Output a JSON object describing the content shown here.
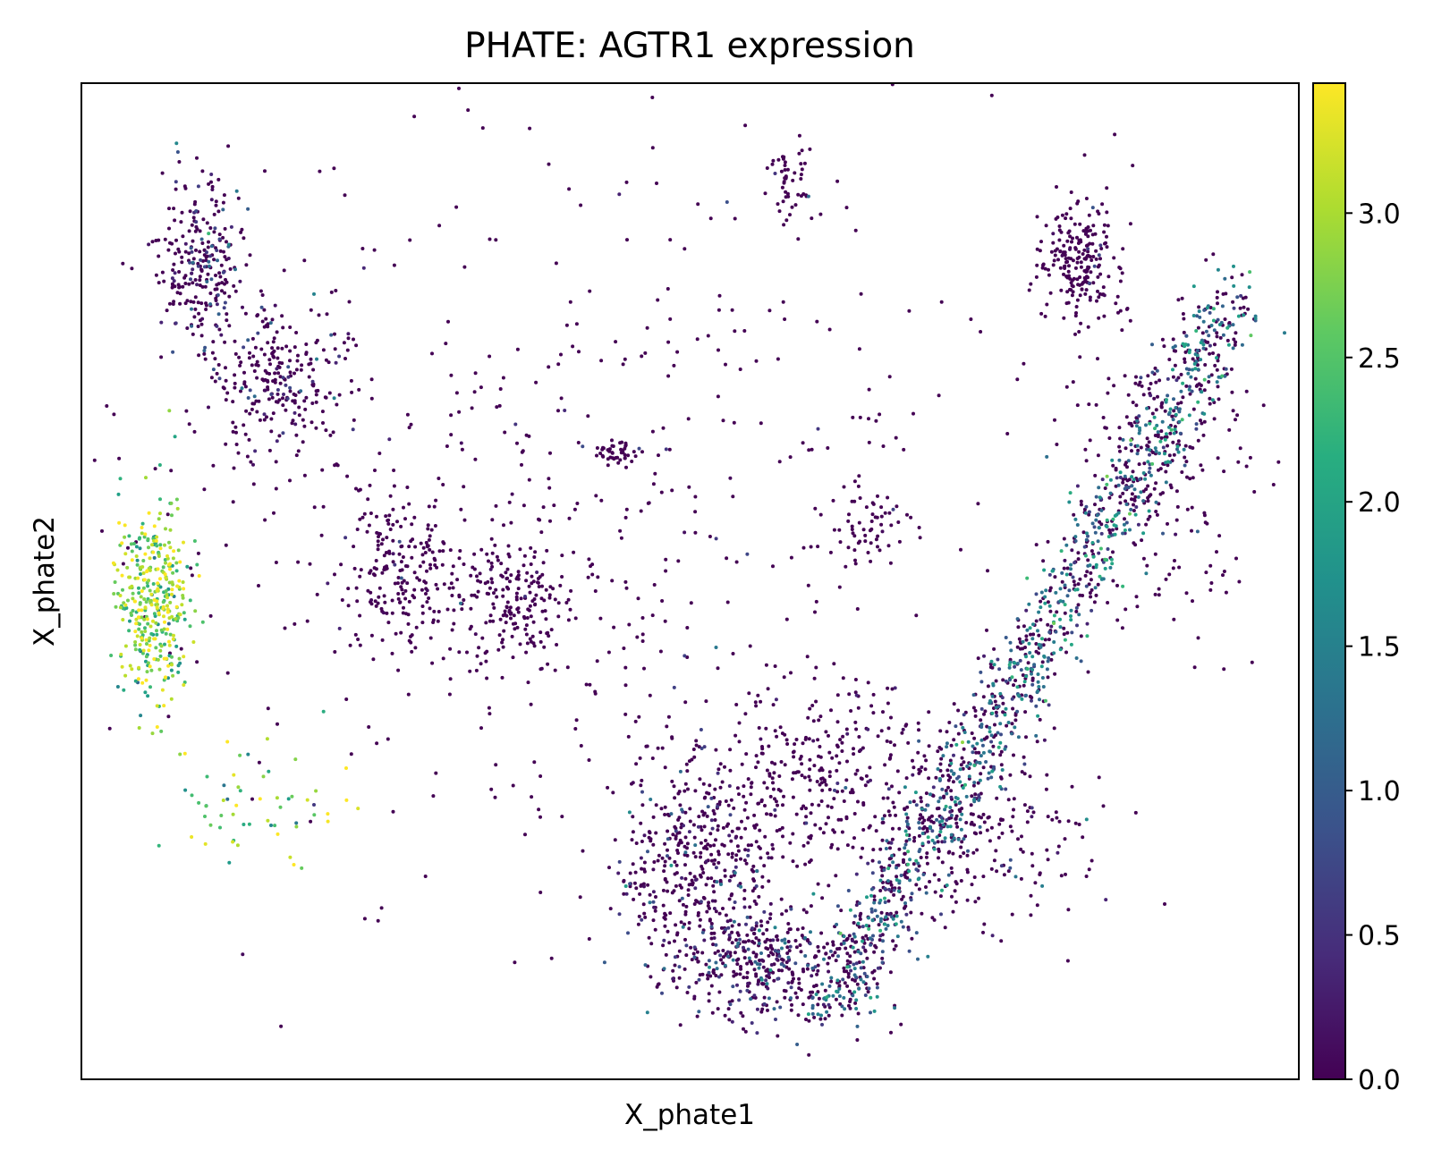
{
  "chart_data": {
    "type": "scatter",
    "title": "PHATE: AGTR1 expression",
    "xlabel": "X_phate1",
    "ylabel": "X_phate2",
    "x_ticks_shown": false,
    "y_ticks_shown": false,
    "grid": false,
    "xlim": [
      0,
      100
    ],
    "ylim": [
      0,
      100
    ],
    "colormap": "viridis",
    "colorbar": {
      "min": 0.0,
      "max": 3.45,
      "ticks": [
        "0.0",
        "0.5",
        "1.0",
        "1.5",
        "2.0",
        "2.5",
        "3.0"
      ],
      "tick_values": [
        0.0,
        0.5,
        1.0,
        1.5,
        2.0,
        2.5,
        3.0
      ],
      "placement": "right"
    },
    "colors": {
      "low": "#440154",
      "mid": "#21918c",
      "high": "#fde725"
    },
    "clusters": [
      {
        "x": 10,
        "y": 82,
        "sx": 1.8,
        "sy": 4.5,
        "n": 260,
        "expr": 0.45
      },
      {
        "x": 16,
        "y": 70,
        "sx": 3.0,
        "sy": 4.0,
        "n": 260,
        "expr": 0.3
      },
      {
        "x": 6,
        "y": 48,
        "sx": 1.4,
        "sy": 5.0,
        "n": 380,
        "expr": 2.8
      },
      {
        "x": 15,
        "y": 27,
        "sx": 3.5,
        "sy": 3.0,
        "n": 60,
        "expr": 2.6
      },
      {
        "x": 27,
        "y": 51,
        "sx": 3.0,
        "sy": 3.5,
        "n": 220,
        "expr": 0.05
      },
      {
        "x": 36,
        "y": 48,
        "sx": 2.0,
        "sy": 3.0,
        "n": 170,
        "expr": 0.05
      },
      {
        "x": 44,
        "y": 63,
        "sx": 0.8,
        "sy": 0.8,
        "n": 40,
        "expr": 0.0
      },
      {
        "x": 58,
        "y": 91,
        "sx": 1.0,
        "sy": 2.0,
        "n": 50,
        "expr": 0.05
      },
      {
        "x": 65,
        "y": 55,
        "sx": 1.5,
        "sy": 1.5,
        "n": 60,
        "expr": 0.0
      },
      {
        "x": 82,
        "y": 82,
        "sx": 1.5,
        "sy": 3.0,
        "n": 220,
        "expr": 0.1
      },
      {
        "x": 50,
        "y": 22,
        "sx": 3.0,
        "sy": 5.0,
        "n": 380,
        "expr": 0.35
      },
      {
        "x": 56,
        "y": 12,
        "sx": 4.0,
        "sy": 3.0,
        "n": 420,
        "expr": 0.5
      },
      {
        "x": 60,
        "y": 30,
        "sx": 5.0,
        "sy": 5.0,
        "n": 320,
        "expr": 0.15
      },
      {
        "x": 72,
        "y": 24,
        "sx": 5.0,
        "sy": 5.0,
        "n": 260,
        "expr": 0.25
      },
      {
        "x": 88,
        "y": 62,
        "sx": 4.0,
        "sy": 9.0,
        "n": 200,
        "expr": 0.1
      },
      {
        "x": 40,
        "y": 55,
        "sx": 18.0,
        "sy": 18.0,
        "n": 520,
        "expr": 0.05
      }
    ],
    "arm": {
      "from": [
        61,
        6
      ],
      "to": [
        95,
        79
      ],
      "n": 1300,
      "expr_start": 1.2,
      "expr_end": 1.4
    }
  }
}
